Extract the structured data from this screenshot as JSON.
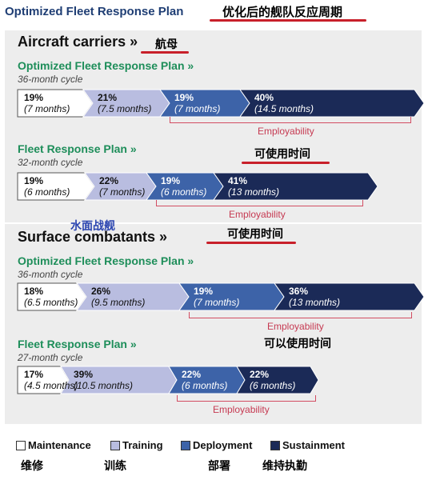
{
  "title": "Optimized Fleet Response Plan",
  "title_cn": "优化后的舰队反应周期",
  "sections": [
    {
      "title": "Aircraft carriers »",
      "title_cn": "航母",
      "plans": [
        {
          "name": "Optimized Fleet Response Plan »",
          "cycle": "36-month cycle",
          "segments": [
            {
              "phase": "maintenance",
              "pct": "19%",
              "months": "(7 months)"
            },
            {
              "phase": "training",
              "pct": "21%",
              "months": "(7.5 months)"
            },
            {
              "phase": "deployment",
              "pct": "19%",
              "months": "(7 months)"
            },
            {
              "phase": "sustainment",
              "pct": "40%",
              "months": "(14.5 months)"
            }
          ],
          "employability": "Employability"
        },
        {
          "name": "Fleet Response Plan »",
          "cycle": "32-month cycle",
          "segments": [
            {
              "phase": "maintenance",
              "pct": "19%",
              "months": "(6 months)"
            },
            {
              "phase": "training",
              "pct": "22%",
              "months": "(7 months)"
            },
            {
              "phase": "deployment",
              "pct": "19%",
              "months": "(6 months)"
            },
            {
              "phase": "sustainment",
              "pct": "41%",
              "months": "(13 months)"
            }
          ],
          "employability": "Employability"
        }
      ]
    },
    {
      "title": "Surface combatants »",
      "title_cn": "水面战舰",
      "plans": [
        {
          "name": "Optimized Fleet Response Plan »",
          "cycle": "36-month cycle",
          "segments": [
            {
              "phase": "maintenance",
              "pct": "18%",
              "months": "(6.5 months)"
            },
            {
              "phase": "training",
              "pct": "26%",
              "months": "(9.5 months)"
            },
            {
              "phase": "deployment",
              "pct": "19%",
              "months": "(7 months)"
            },
            {
              "phase": "sustainment",
              "pct": "36%",
              "months": "(13 months)"
            }
          ],
          "employability": "Employability"
        },
        {
          "name": "Fleet Response Plan »",
          "cycle": "27-month cycle",
          "segments": [
            {
              "phase": "maintenance",
              "pct": "17%",
              "months": "(4.5 months)"
            },
            {
              "phase": "training",
              "pct": "39%",
              "months": "(10.5 months)"
            },
            {
              "phase": "deployment",
              "pct": "22%",
              "months": "(6 months)"
            },
            {
              "phase": "sustainment",
              "pct": "22%",
              "months": "(6 months)"
            }
          ],
          "employability": "Employability"
        }
      ]
    }
  ],
  "annotations_cn": {
    "employable_1": "可使用时间",
    "employable_2": "可使用时间",
    "employable_3": "可以使用时间"
  },
  "legend": [
    {
      "phase": "maintenance",
      "label": "Maintenance",
      "label_cn": "维修"
    },
    {
      "phase": "training",
      "label": "Training",
      "label_cn": "训练"
    },
    {
      "phase": "deployment",
      "label": "Deployment",
      "label_cn": "部署"
    },
    {
      "phase": "sustainment",
      "label": "Sustainment",
      "label_cn": "维持执勤"
    }
  ],
  "colors": {
    "maintenance": "#ffffff",
    "training": "#b9bde0",
    "deployment": "#3d63a8",
    "sustainment": "#1b2a57",
    "employability": "#c63a52",
    "plan_title": "#1e8e5a",
    "main_title": "#1f3e74"
  }
}
